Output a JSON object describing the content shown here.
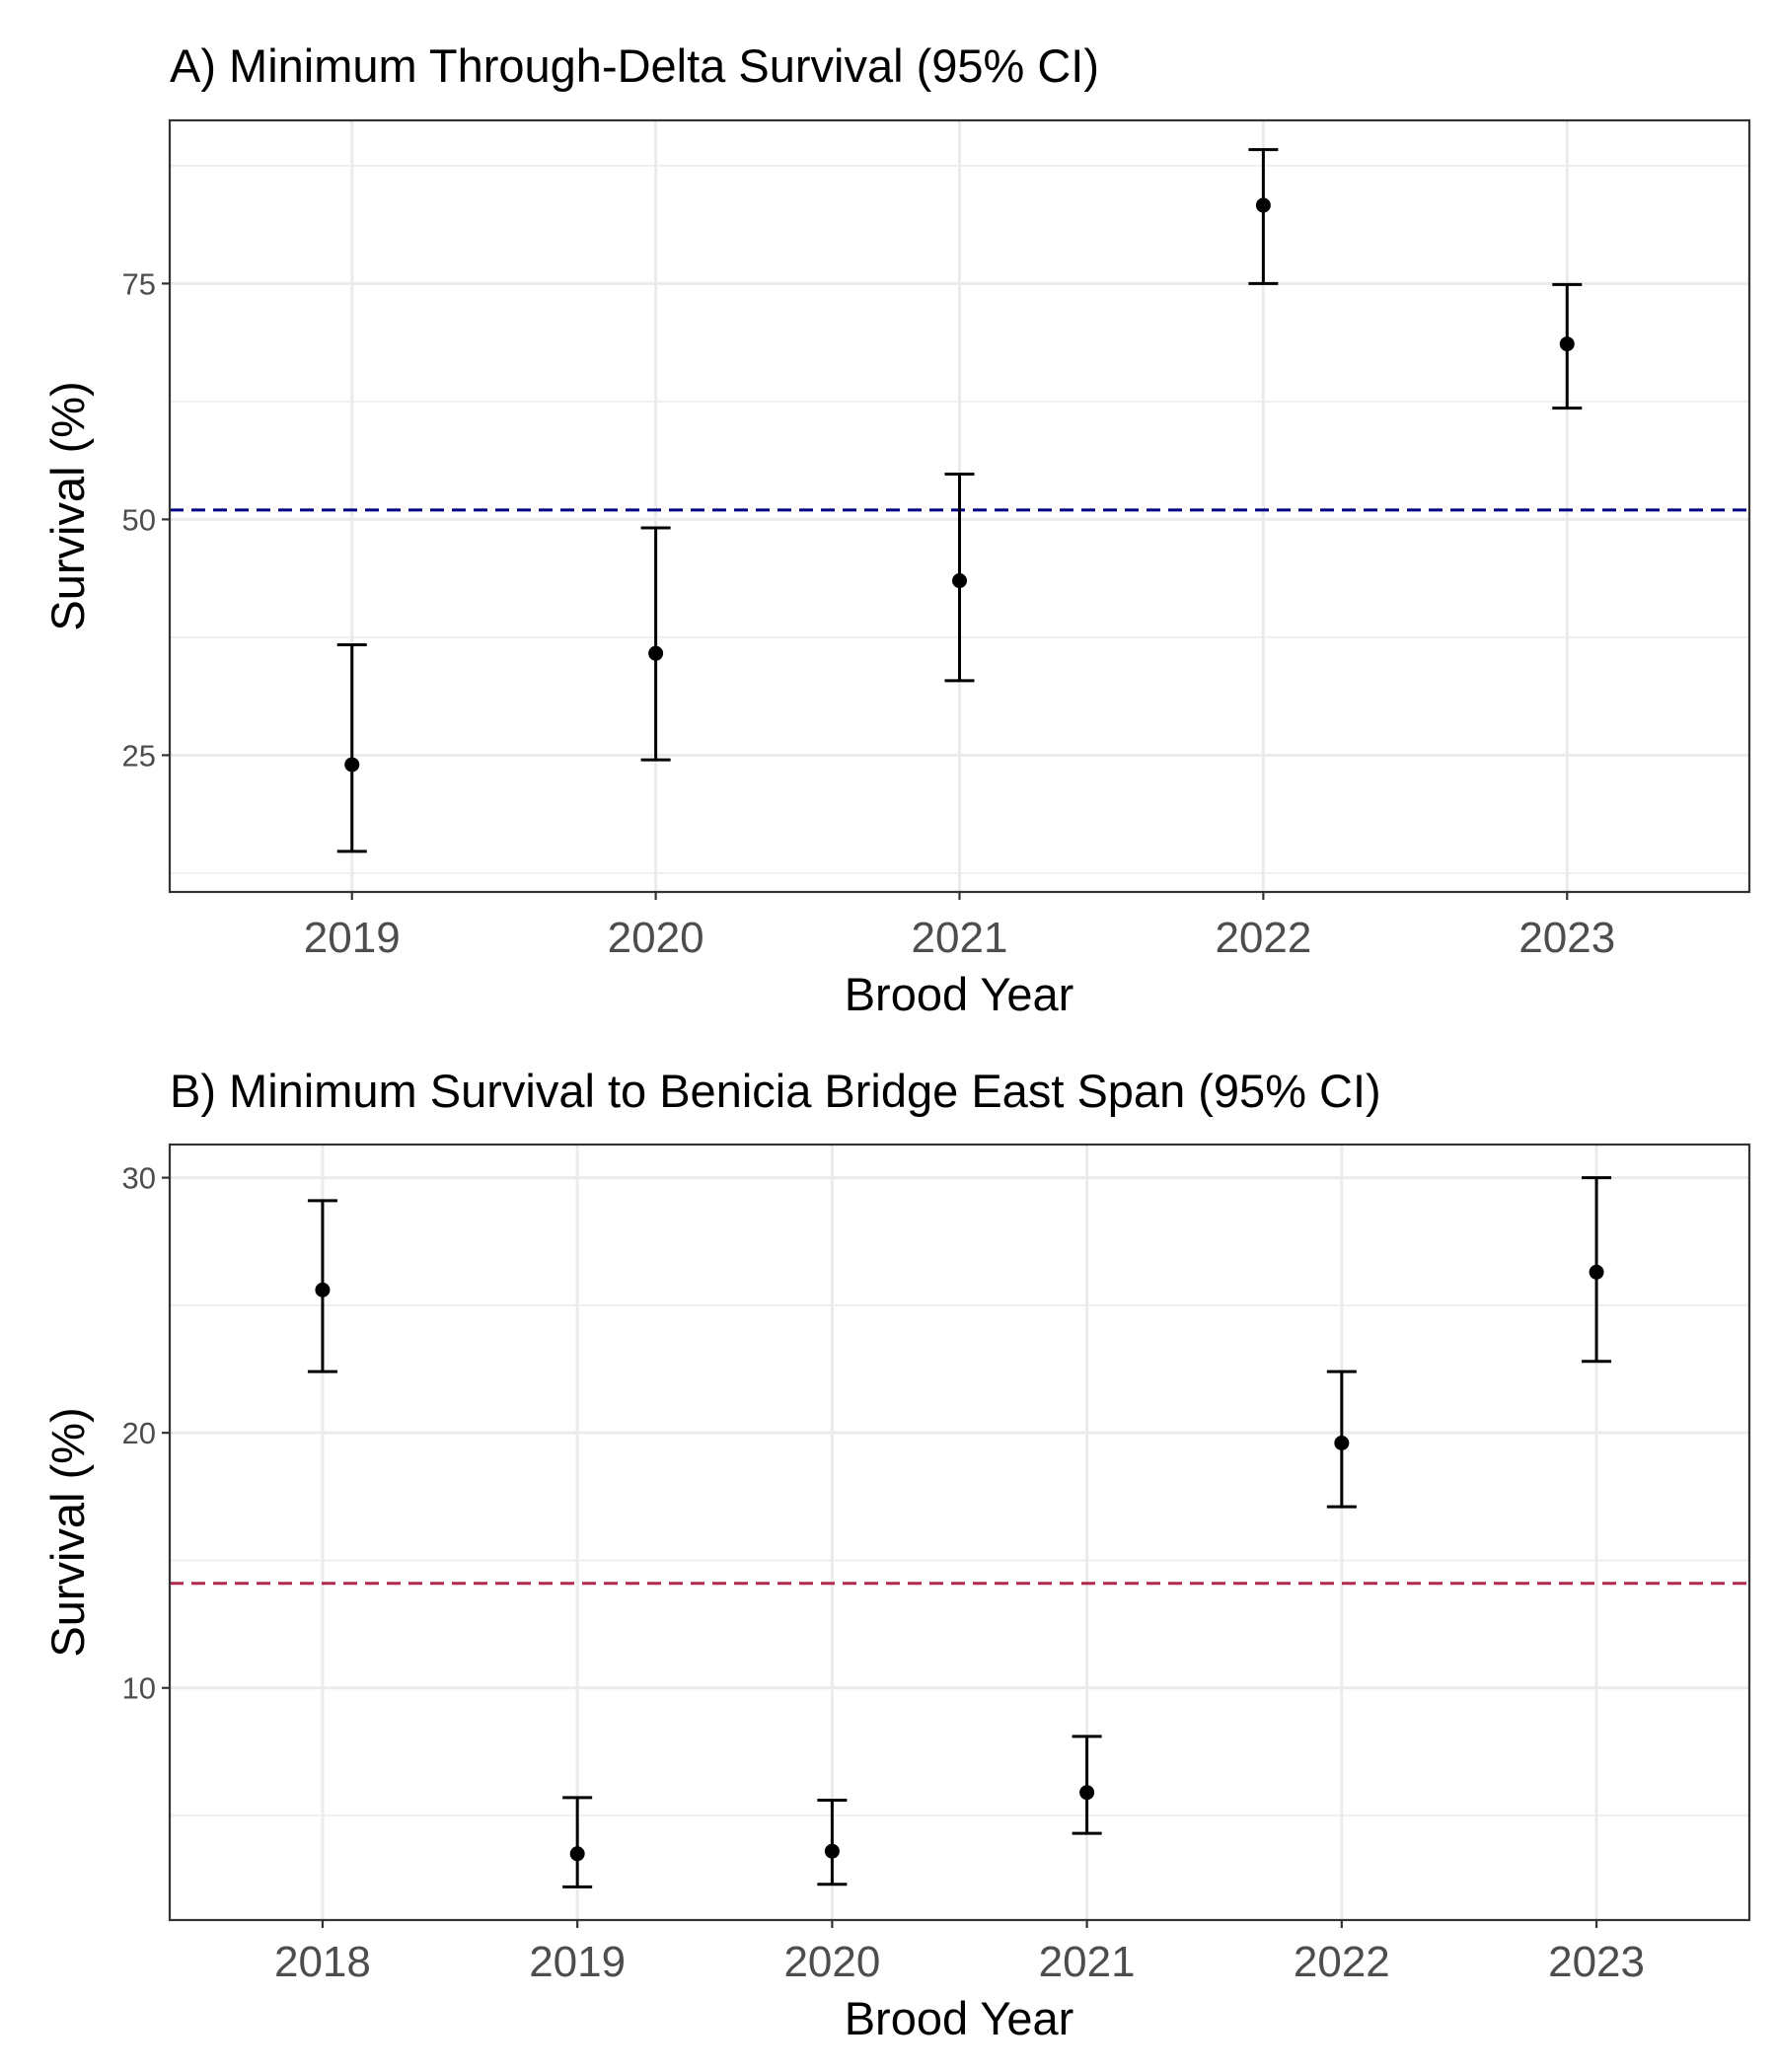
{
  "chart_data": [
    {
      "type": "scatter",
      "title": "A) Minimum Through-Delta Survival (95% CI)",
      "xlabel": "Brood Year",
      "ylabel": "Survival (%)",
      "categories": [
        "2019",
        "2020",
        "2021",
        "2022",
        "2023"
      ],
      "values": [
        24.0,
        35.8,
        43.5,
        83.3,
        68.6
      ],
      "ci_lower": [
        14.8,
        24.5,
        32.9,
        75.0,
        61.8
      ],
      "ci_upper": [
        36.7,
        49.1,
        54.8,
        89.2,
        74.9
      ],
      "reference_line": {
        "value": 51.0,
        "color": "#000080",
        "style": "dashed"
      },
      "ylim": [
        10.5,
        92.3
      ],
      "yticks": [
        25,
        50,
        75
      ],
      "grid": true
    },
    {
      "type": "scatter",
      "title": "B) Minimum Survival to Benicia Bridge East Span (95% CI)",
      "xlabel": "Brood Year",
      "ylabel": "Survival (%)",
      "categories": [
        "2018",
        "2019",
        "2020",
        "2021",
        "2022",
        "2023"
      ],
      "values": [
        25.6,
        3.5,
        3.6,
        5.9,
        19.6,
        26.3
      ],
      "ci_lower": [
        22.4,
        2.2,
        2.3,
        4.3,
        17.1,
        22.8
      ],
      "ci_upper": [
        29.1,
        5.7,
        5.6,
        8.1,
        22.4,
        30.0
      ],
      "reference_line": {
        "value": 14.1,
        "color": "#b2294e",
        "style": "dashed"
      },
      "ylim": [
        0.9,
        31.3
      ],
      "yticks": [
        10,
        20,
        30
      ],
      "grid": true
    }
  ]
}
